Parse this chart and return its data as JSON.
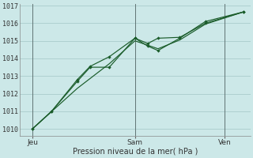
{
  "xlabel": "Pression niveau de la mer( hPa )",
  "background_color": "#cce8e8",
  "grid_color": "#aacccc",
  "line_color": "#1a5c2a",
  "ylim": [
    1009.6,
    1017.1
  ],
  "yticks": [
    1010,
    1011,
    1012,
    1013,
    1014,
    1015,
    1016,
    1017
  ],
  "xlim": [
    0,
    18
  ],
  "day_positions": [
    1,
    9,
    16
  ],
  "day_labels": [
    "Jeu",
    "Sam",
    "Ven"
  ],
  "vline_positions": [
    1,
    9,
    16
  ],
  "series1_x": [
    1,
    2.5,
    4.5,
    5.5,
    7,
    9,
    10,
    10.8,
    12.5,
    14.5,
    17.5
  ],
  "series1_y": [
    1010.0,
    1011.0,
    1012.7,
    1013.5,
    1013.5,
    1015.15,
    1014.7,
    1014.45,
    1015.15,
    1016.1,
    1016.65
  ],
  "series2_x": [
    1,
    2.5,
    4.5,
    5.5,
    7,
    9,
    10,
    10.8,
    12.5,
    14.5,
    17.5
  ],
  "series2_y": [
    1010.0,
    1011.0,
    1012.8,
    1013.55,
    1014.1,
    1015.15,
    1014.85,
    1015.15,
    1015.2,
    1016.0,
    1016.65
  ],
  "series3_x": [
    1,
    4.5,
    7,
    9,
    10.8,
    12.5,
    14.5,
    17.5
  ],
  "series3_y": [
    1010.0,
    1012.3,
    1013.7,
    1015.0,
    1014.55,
    1015.05,
    1015.95,
    1016.65
  ]
}
